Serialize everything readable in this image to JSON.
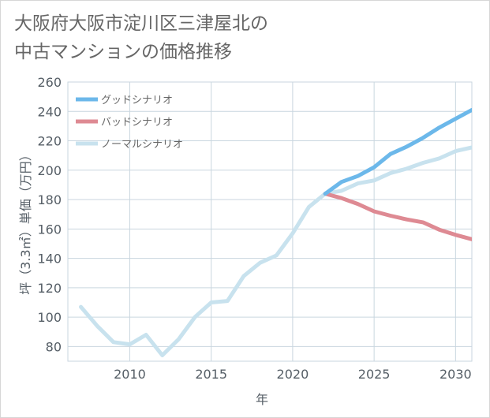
{
  "title": {
    "line1": "大阪府大阪市淀川区三津屋北の",
    "line2": "中古マンションの価格推移"
  },
  "chart_data": {
    "type": "line",
    "xlabel": "年",
    "ylabel": "坪（3.3㎡）単価（万円）",
    "xlim": [
      2006.2,
      2031
    ],
    "ylim": [
      70,
      260
    ],
    "xticks": [
      2010,
      2015,
      2020,
      2025,
      2030
    ],
    "yticks": [
      80,
      100,
      120,
      140,
      160,
      180,
      200,
      220,
      240,
      260
    ],
    "grid": true,
    "legend_position": "top-left",
    "series": [
      {
        "name": "ノーマルシナリオ",
        "color": "#c8e2ee",
        "x": [
          2007,
          2008,
          2009,
          2010,
          2011,
          2012,
          2013,
          2014,
          2015,
          2016,
          2017,
          2018,
          2019,
          2020,
          2021,
          2022,
          2023,
          2024,
          2025,
          2026,
          2027,
          2028,
          2029,
          2030,
          2031
        ],
        "values": [
          107,
          94,
          83,
          81.5,
          88,
          74,
          85,
          100,
          110,
          111,
          128,
          137,
          142,
          157,
          175,
          184,
          186,
          191,
          193,
          198,
          201,
          205,
          208,
          213,
          215.5
        ]
      },
      {
        "name": "バッドシナリオ",
        "color": "#de8a93",
        "x": [
          2022,
          2023,
          2024,
          2025,
          2026,
          2027,
          2028,
          2029,
          2030,
          2031
        ],
        "values": [
          184,
          181,
          177,
          172,
          169,
          166.5,
          164.5,
          159.5,
          156,
          153
        ]
      },
      {
        "name": "グッドシナリオ",
        "color": "#6cb8ea",
        "x": [
          2022,
          2023,
          2024,
          2025,
          2026,
          2027,
          2028,
          2029,
          2030,
          2031
        ],
        "values": [
          184,
          192,
          196,
          202,
          211,
          216,
          222,
          229,
          235,
          241
        ]
      }
    ],
    "legend_order": [
      "グッドシナリオ",
      "バッドシナリオ",
      "ノーマルシナリオ"
    ]
  }
}
